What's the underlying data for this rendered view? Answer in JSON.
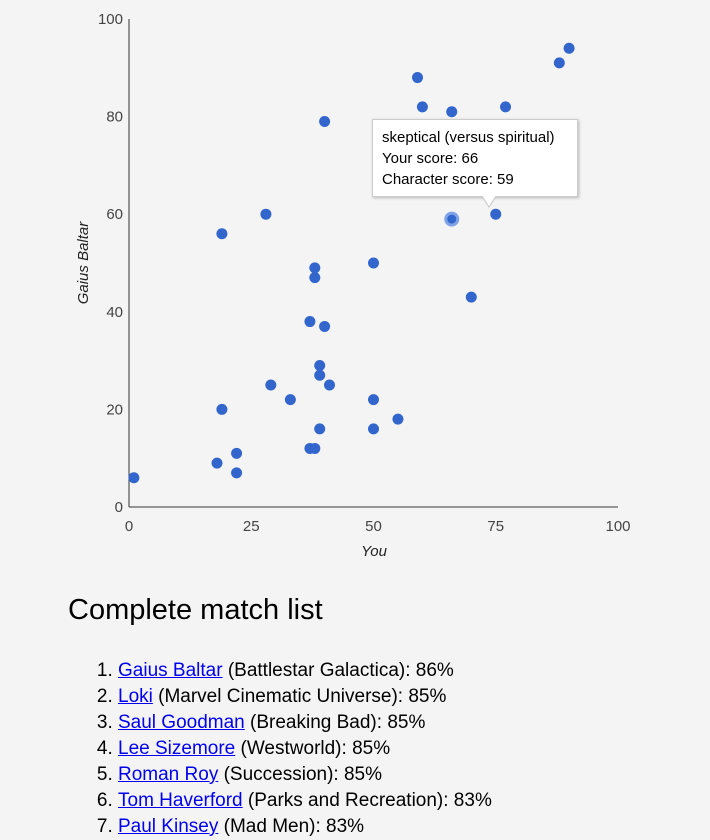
{
  "chart_data": {
    "type": "scatter",
    "xlabel": "You",
    "ylabel": "Gaius Baltar",
    "xlim": [
      0,
      100
    ],
    "ylim": [
      0,
      100
    ],
    "xticks": [
      0,
      25,
      50,
      75,
      100
    ],
    "yticks": [
      0,
      20,
      40,
      60,
      80,
      100
    ],
    "grid": false,
    "point_color": "#3366cc",
    "points": [
      {
        "x": 1,
        "y": 6
      },
      {
        "x": 18,
        "y": 9
      },
      {
        "x": 19,
        "y": 20
      },
      {
        "x": 19,
        "y": 56
      },
      {
        "x": 22,
        "y": 7
      },
      {
        "x": 22,
        "y": 11
      },
      {
        "x": 28,
        "y": 60
      },
      {
        "x": 29,
        "y": 25
      },
      {
        "x": 33,
        "y": 22
      },
      {
        "x": 37,
        "y": 12
      },
      {
        "x": 38,
        "y": 12
      },
      {
        "x": 37,
        "y": 38
      },
      {
        "x": 38,
        "y": 47
      },
      {
        "x": 38,
        "y": 49
      },
      {
        "x": 39,
        "y": 16
      },
      {
        "x": 39,
        "y": 27
      },
      {
        "x": 39,
        "y": 29
      },
      {
        "x": 40,
        "y": 37
      },
      {
        "x": 40,
        "y": 79
      },
      {
        "x": 41,
        "y": 25
      },
      {
        "x": 50,
        "y": 16
      },
      {
        "x": 50,
        "y": 22
      },
      {
        "x": 50,
        "y": 50
      },
      {
        "x": 55,
        "y": 18
      },
      {
        "x": 59,
        "y": 88
      },
      {
        "x": 60,
        "y": 82
      },
      {
        "x": 66,
        "y": 59,
        "highlight": true
      },
      {
        "x": 66,
        "y": 81
      },
      {
        "x": 70,
        "y": 43
      },
      {
        "x": 75,
        "y": 60
      },
      {
        "x": 77,
        "y": 82
      },
      {
        "x": 88,
        "y": 91
      },
      {
        "x": 90,
        "y": 94
      }
    ],
    "tooltip": {
      "trait": "skeptical (versus spiritual)",
      "your_score": "Your score: 66",
      "character_score": "Character score: 59"
    }
  },
  "match_list": {
    "heading": "Complete match list",
    "items": [
      {
        "name": "Gaius Baltar",
        "rest": " (Battlestar Galactica): 86%"
      },
      {
        "name": "Loki",
        "rest": " (Marvel Cinematic Universe): 85%"
      },
      {
        "name": "Saul Goodman",
        "rest": " (Breaking Bad): 85%"
      },
      {
        "name": "Lee Sizemore",
        "rest": " (Westworld): 85%"
      },
      {
        "name": "Roman Roy",
        "rest": " (Succession): 85%"
      },
      {
        "name": "Tom Haverford",
        "rest": " (Parks and Recreation): 83%"
      },
      {
        "name": "Paul Kinsey",
        "rest": " (Mad Men): 83%"
      }
    ]
  }
}
